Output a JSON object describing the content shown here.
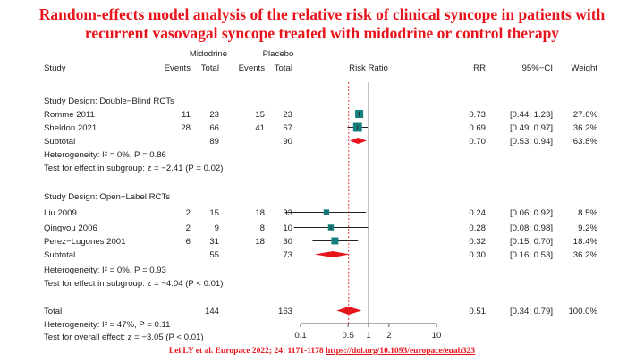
{
  "title_line1": "Random-effects model analysis of the relative risk of clinical syncope in patients with",
  "title_line2": "recurrent vasovagal syncope treated with midodrine or control therapy",
  "citation_text": "Lei LY et al. Europace 2022; 24: 1171-1178",
  "citation_link": "https://doi.org/10.1093/europace/euab323",
  "chart_data": {
    "type": "forest",
    "headers": {
      "group1": "Midodrine",
      "group2": "Placebo",
      "study": "Study",
      "events1": "Events",
      "total1": "Total",
      "events2": "Events",
      "total2": "Total",
      "plot": "Risk Ratio",
      "rr": "RR",
      "ci": "95%−CI",
      "weight": "Weight"
    },
    "subgroups": [
      {
        "label": "Study Design: Double−Blind RCTs",
        "studies": [
          {
            "name": "Romme 2011",
            "events1": "11",
            "total1": "23",
            "events2": "15",
            "total2": "23",
            "rr": 0.73,
            "lo": 0.44,
            "hi": 1.23,
            "rr_text": "0.73",
            "ci_text": "[0.44; 1.23]",
            "weight": "27.6%"
          },
          {
            "name": "Sheldon 2021",
            "events1": "28",
            "total1": "66",
            "events2": "41",
            "total2": "67",
            "rr": 0.69,
            "lo": 0.49,
            "hi": 0.97,
            "rr_text": "0.69",
            "ci_text": "[0.49; 0.97]",
            "weight": "36.2%"
          }
        ],
        "subtotal": {
          "label": "Subtotal",
          "total1": "89",
          "total2": "90",
          "rr": 0.7,
          "lo": 0.53,
          "hi": 0.94,
          "rr_text": "0.70",
          "ci_text": "[0.53; 0.94]",
          "weight": "63.8%"
        },
        "heterogeneity": "Heterogeneity: I² = 0%, P = 0.86",
        "test": "Test for effect in subgroup: z = −2.41 (P = 0.02)"
      },
      {
        "label": "Study Design: Open−Label RCTs",
        "studies": [
          {
            "name": "Liu 2009",
            "events1": "2",
            "total1": "15",
            "events2": "18",
            "total2": "33",
            "rr": 0.24,
            "lo": 0.06,
            "hi": 0.92,
            "rr_text": "0.24",
            "ci_text": "[0.06; 0.92]",
            "weight": "8.5%"
          },
          {
            "name": "Qingyou 2006",
            "events1": "2",
            "total1": "9",
            "events2": "8",
            "total2": "10",
            "rr": 0.28,
            "lo": 0.08,
            "hi": 0.98,
            "rr_text": "0.28",
            "ci_text": "[0.08; 0.98]",
            "weight": "9.2%"
          },
          {
            "name": "Perez−Lugones 2001",
            "events1": "6",
            "total1": "31",
            "events2": "18",
            "total2": "30",
            "rr": 0.32,
            "lo": 0.15,
            "hi": 0.7,
            "rr_text": "0.32",
            "ci_text": "[0.15; 0.70]",
            "weight": "18.4%"
          }
        ],
        "subtotal": {
          "label": "Subtotal",
          "total1": "55",
          "total2": "73",
          "rr": 0.3,
          "lo": 0.16,
          "hi": 0.53,
          "rr_text": "0.30",
          "ci_text": "[0.16; 0.53]",
          "weight": "36.2%"
        },
        "heterogeneity": "Heterogeneity: I² = 0%, P = 0.93",
        "test": "Test for effect in subgroup: z = −4.04 (P < 0.01)"
      }
    ],
    "overall": {
      "label": "Total",
      "total1": "144",
      "total2": "163",
      "rr": 0.51,
      "lo": 0.34,
      "hi": 0.79,
      "rr_text": "0.51",
      "ci_text": "[0.34; 0.79]",
      "weight": "100.0%"
    },
    "overall_heterogeneity": "Heterogeneity: I² = 47%, P = 0.11",
    "overall_test": "Test for overall effect: z = −3.05 (P < 0.01)",
    "x_axis": {
      "scale": "log",
      "ticks": [
        0.1,
        0.5,
        1,
        2,
        10
      ],
      "tick_labels": [
        "0.1",
        "0.5",
        "1",
        "2",
        "10"
      ],
      "range": [
        0.1,
        10
      ]
    },
    "colors": {
      "study_marker": "#13807f",
      "diamond": "#e8141c",
      "overall_line": "#e8141c",
      "title": "#e8141c"
    }
  }
}
